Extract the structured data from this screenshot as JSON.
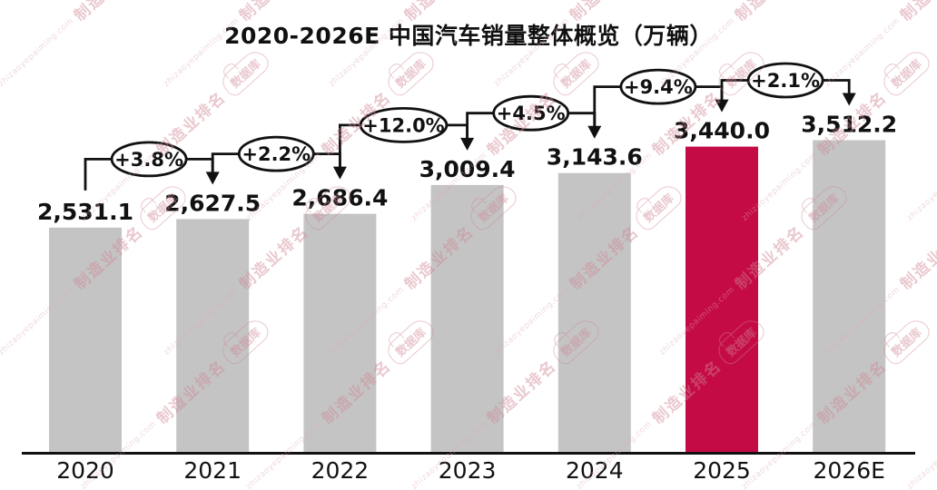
{
  "title": "2020-2026E 中国汽车销量整体概览（万辆）",
  "watermark": {
    "url_text": "zhizaoyepaiming.com",
    "brand_text": "制造业排名",
    "cloud_text": "数据库",
    "color": "#cf8794"
  },
  "chart_data": {
    "type": "bar",
    "title": "2020-2026E 中国汽车销量整体概览（万辆）",
    "unit": "万辆",
    "categories": [
      "2020",
      "2021",
      "2022",
      "2023",
      "2024",
      "2025",
      "2026E"
    ],
    "values": [
      2531.1,
      2627.5,
      2686.4,
      3009.4,
      3143.6,
      3440.0,
      3512.2
    ],
    "value_labels": [
      "2,531.1",
      "2,627.5",
      "2,686.4",
      "3,009.4",
      "3,143.6",
      "3,440.0",
      "3,512.2"
    ],
    "growth": [
      {
        "from": "2020",
        "to": "2021",
        "label": "+3.8%"
      },
      {
        "from": "2021",
        "to": "2022",
        "label": "+2.2%"
      },
      {
        "from": "2022",
        "to": "2023",
        "label": "+12.0%"
      },
      {
        "from": "2023",
        "to": "2024",
        "label": "+4.5%"
      },
      {
        "from": "2024",
        "to": "2025",
        "label": "+9.4%"
      },
      {
        "from": "2025",
        "to": "2026E",
        "label": "+2.1%"
      }
    ],
    "highlight_index": 5,
    "colors": {
      "bar_default": "#c4c4c4",
      "bar_highlight": "#c50b45",
      "line": "#111111",
      "text": "#111111",
      "ellipse_fill": "#ffffff"
    },
    "ylim": [
      0,
      3512.2
    ],
    "grid": false,
    "legend": false,
    "xlabel": "",
    "ylabel": ""
  }
}
